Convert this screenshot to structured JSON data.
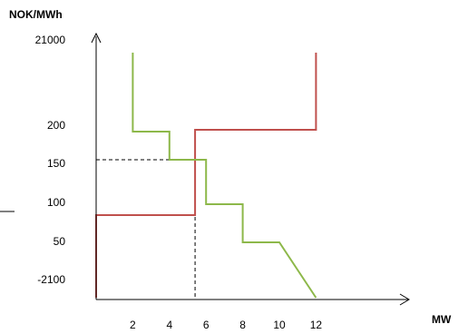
{
  "chart_data": {
    "type": "line",
    "ylabel": "NOK/MWh",
    "xlabel": "MW",
    "x_ticks": [
      "2",
      "4",
      "6",
      "8",
      "10",
      "12"
    ],
    "y_ticks": [
      "-2100",
      "50",
      "100",
      "150",
      "200",
      "21000"
    ],
    "series": [
      {
        "color": "#c0504d",
        "step": "supply",
        "x": [
          0,
          5.4,
          5.4,
          12
        ],
        "y": [
          "-2100",
          "90",
          "198",
          "21000"
        ]
      },
      {
        "color": "#8db84a",
        "step": "demand",
        "x": [
          2,
          2,
          4,
          4,
          6,
          6,
          8,
          8,
          10,
          12
        ],
        "y": [
          "21000",
          "195",
          "195",
          "155",
          "155",
          "100",
          "100",
          "50",
          "50",
          "-2100"
        ]
      }
    ],
    "equilibrium": {
      "x": 5.4,
      "y": "155"
    },
    "colors": {
      "supply": "#c0504d",
      "demand": "#8db84a",
      "axis": "#000000"
    }
  }
}
